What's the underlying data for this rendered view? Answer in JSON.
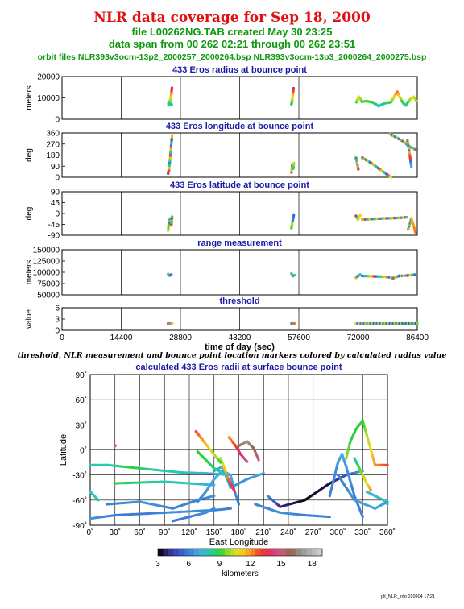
{
  "header": {
    "title": "NLR data coverage for Sep 18, 2000",
    "file_line": "file L00262NG.TAB created May 30 23:25",
    "span_line": "data span from 00 262 02:21 through 00 262 23:51",
    "orbit_line": "orbit files NLR393v3ocm-13p2_2000257_2000264.bsp NLR393v3ocm-13p3_2000264_2000275.bsp"
  },
  "caption": "threshold, NLR measurement and bounce point location markers colored by calculated radius value",
  "footer": "plt_NLR_info 010904 17:21",
  "colors": {
    "title": "#e01010",
    "subtitle": "#109810",
    "panel_title": "#1a1aa8"
  },
  "chart_data": [
    {
      "type": "scatter",
      "title": "433 Eros radius at bounce point",
      "ylabel": "meters",
      "ylim": [
        0,
        20000
      ],
      "yticks": [
        "0",
        "10000",
        "20000"
      ],
      "xlim": [
        0,
        86400
      ],
      "grid": true,
      "segments": [
        {
          "x": [
            25900,
            26000,
            26200,
            26400,
            26600,
            26750
          ],
          "y": [
            7500,
            6800,
            8200,
            9500,
            12000,
            15000
          ]
        },
        {
          "x": [
            25900,
            26300,
            26700
          ],
          "y": [
            6500,
            7200,
            6900
          ]
        },
        {
          "x": [
            55800,
            55950,
            56100,
            56300
          ],
          "y": [
            7000,
            8500,
            11000,
            14500
          ]
        },
        {
          "x": [
            71600,
            72200,
            73000,
            74000,
            75500,
            77000,
            78500,
            80000,
            81500,
            82500,
            83200
          ],
          "y": [
            8000,
            10500,
            8200,
            8500,
            8000,
            6200,
            7500,
            8000,
            12800,
            9000,
            7000
          ]
        },
        {
          "x": [
            83600,
            84500,
            85500,
            86300
          ],
          "y": [
            6500,
            9000,
            10500,
            8500
          ]
        }
      ]
    },
    {
      "type": "scatter",
      "title": "433 Eros longitude at bounce point",
      "ylabel": "deg",
      "ylim": [
        0,
        360
      ],
      "yticks": [
        "0",
        "90",
        "180",
        "270",
        "360"
      ],
      "xlim": [
        0,
        86400
      ],
      "grid": true,
      "segments": [
        {
          "x": [
            25800,
            26000,
            26200,
            26400,
            26600,
            26800
          ],
          "y": [
            30,
            60,
            120,
            200,
            280,
            340
          ]
        },
        {
          "x": [
            55800,
            56000,
            56200,
            56400
          ],
          "y": [
            40,
            100,
            70,
            120
          ]
        },
        {
          "x": [
            71500,
            71800,
            72100
          ],
          "y": [
            160,
            110,
            60
          ]
        },
        {
          "x": [
            73000,
            75000,
            77500,
            80000
          ],
          "y": [
            160,
            120,
            60,
            0
          ]
        },
        {
          "x": [
            79800,
            81500,
            83000,
            84500,
            86200
          ],
          "y": [
            350,
            320,
            290,
            250,
            220
          ]
        },
        {
          "x": [
            84000,
            84500,
            85000
          ],
          "y": [
            300,
            200,
            80
          ]
        }
      ]
    },
    {
      "type": "scatter",
      "title": "433 Eros latitude at bounce point",
      "ylabel": "deg",
      "ylim": [
        -90,
        90
      ],
      "yticks": [
        "-90",
        "-45",
        "0",
        "45",
        "90"
      ],
      "xlim": [
        0,
        86400
      ],
      "grid": true,
      "segments": [
        {
          "x": [
            25800,
            26000,
            26300,
            26600,
            26800
          ],
          "y": [
            -70,
            -40,
            -20,
            -50,
            -10
          ]
        },
        {
          "x": [
            55800,
            56100,
            56400
          ],
          "y": [
            -60,
            -30,
            -5
          ]
        },
        {
          "x": [
            71500,
            72000,
            72600
          ],
          "y": [
            -10,
            -25,
            -5
          ]
        },
        {
          "x": [
            73000,
            76000,
            79000,
            82000,
            84000
          ],
          "y": [
            -25,
            -22,
            -20,
            -18,
            -15
          ]
        },
        {
          "x": [
            84200,
            85000,
            86000
          ],
          "y": [
            -65,
            -20,
            -80
          ]
        }
      ]
    },
    {
      "type": "scatter",
      "title": "range measurement",
      "ylabel": "meters",
      "ylim": [
        50000,
        150000
      ],
      "yticks": [
        "50000",
        "75000",
        "100000",
        "125000",
        "150000"
      ],
      "xlim": [
        0,
        86400
      ],
      "grid": true,
      "segments": [
        {
          "x": [
            25800,
            26200,
            26600
          ],
          "y": [
            96000,
            93000,
            95000
          ]
        },
        {
          "x": [
            55800,
            56200,
            56500
          ],
          "y": [
            97000,
            92000,
            94000
          ]
        },
        {
          "x": [
            71500,
            72000,
            72500
          ],
          "y": [
            88000,
            92000,
            95000
          ]
        },
        {
          "x": [
            73000,
            76000,
            79000,
            80500,
            82000,
            84000,
            86000
          ],
          "y": [
            92000,
            91000,
            90000,
            87000,
            92000,
            93000,
            95000
          ]
        }
      ]
    },
    {
      "type": "scatter",
      "title": "threshold",
      "ylabel": "value",
      "ylim": [
        0,
        6
      ],
      "yticks": [
        "0",
        "3",
        "6"
      ],
      "xlim": [
        0,
        86400
      ],
      "xticks": [
        "0",
        "14400",
        "28800",
        "43200",
        "57600",
        "72000",
        "86400"
      ],
      "xlabel": "time of day (sec)",
      "grid": true,
      "segments": [
        {
          "x": [
            25800,
            26800
          ],
          "y": [
            1.8,
            1.8
          ]
        },
        {
          "x": [
            55800,
            56500
          ],
          "y": [
            1.8,
            1.8
          ]
        },
        {
          "x": [
            71500,
            86400
          ],
          "y": [
            1.8,
            1.8
          ]
        }
      ]
    },
    {
      "type": "scatter",
      "title": "calculated 433 Eros radii at surface bounce point",
      "xlabel": "East Longitude",
      "ylabel": "Latitude",
      "xlim": [
        0,
        360
      ],
      "ylim": [
        -90,
        90
      ],
      "xticks": [
        "0˚",
        "30˚",
        "60˚",
        "90˚",
        "120˚",
        "150˚",
        "180˚",
        "210˚",
        "240˚",
        "270˚",
        "300˚",
        "330˚",
        "360˚"
      ],
      "yticks": [
        "-90˚",
        "-60˚",
        "-30˚",
        "0˚",
        "30˚",
        "60˚",
        "90˚"
      ],
      "grid": true,
      "colorbar": {
        "label": "kilometers",
        "ticks": [
          "3",
          "6",
          "9",
          "12",
          "15",
          "18"
        ],
        "range": [
          3,
          19
        ]
      },
      "tracks": [
        {
          "lon": [
            0,
            20,
            50,
            80,
            110,
            140,
            170
          ],
          "lat": [
            -18,
            -18,
            -21,
            -24,
            -27,
            -28,
            -30
          ],
          "km": [
            8,
            8,
            9,
            8,
            8,
            7,
            7
          ]
        },
        {
          "lon": [
            30,
            60,
            90,
            120,
            150
          ],
          "lat": [
            -40,
            -39,
            -38,
            -40,
            -42
          ],
          "km": [
            9,
            8.5,
            8,
            8,
            7
          ]
        },
        {
          "lon": [
            0,
            30,
            70,
            110,
            150,
            170
          ],
          "lat": [
            -82,
            -78,
            -76,
            -74,
            -72,
            -70
          ],
          "km": [
            6.5,
            6,
            6,
            6.5,
            6.2,
            6
          ]
        },
        {
          "lon": [
            20,
            60,
            100,
            130,
            150
          ],
          "lat": [
            -65,
            -62,
            -70,
            -60,
            -55
          ],
          "km": [
            6,
            6.5,
            6.2,
            6,
            6.5
          ]
        },
        {
          "lon": [
            130,
            140,
            150,
            160,
            170,
            175,
            180
          ],
          "lat": [
            -62,
            -50,
            -35,
            -25,
            -30,
            -50,
            -65
          ],
          "km": [
            6,
            6.5,
            7,
            7.5,
            7,
            6.5,
            6
          ]
        },
        {
          "lon": [
            150,
            160,
            170,
            190,
            210
          ],
          "lat": [
            -25,
            -20,
            -45,
            -35,
            -28
          ],
          "km": [
            6.5,
            7,
            6.5,
            6.5,
            7
          ]
        },
        {
          "lon": [
            100,
            120,
            140,
            150
          ],
          "lat": [
            -85,
            -80,
            -75,
            -70
          ],
          "km": [
            6,
            6,
            6.5,
            6.2
          ]
        },
        {
          "lon": [
            158,
            162,
            165,
            170,
            175
          ],
          "lat": [
            -10,
            -20,
            -30,
            -40,
            -50
          ],
          "km": [
            10,
            11,
            12,
            13,
            14
          ]
        },
        {
          "lon": [
            168,
            176,
            182,
            190
          ],
          "lat": [
            15,
            5,
            -5,
            -14
          ],
          "km": [
            12,
            13,
            14,
            15
          ]
        },
        {
          "lon": [
            180,
            190,
            198,
            204
          ],
          "lat": [
            5,
            10,
            2,
            -12
          ],
          "km": [
            16,
            17,
            16,
            15
          ]
        },
        {
          "lon": [
            128,
            136,
            144,
            152,
            158
          ],
          "lat": [
            22,
            12,
            2,
            -8,
            -15
          ],
          "km": [
            13,
            12,
            11,
            10,
            9
          ]
        },
        {
          "lon": [
            130,
            140,
            150,
            165
          ],
          "lat": [
            -2,
            -12,
            -22,
            -30
          ],
          "km": [
            9,
            9,
            8.5,
            8
          ]
        },
        {
          "lon": [
            215,
            230,
            260,
            290,
            310,
            330
          ],
          "lat": [
            -55,
            -68,
            -60,
            -40,
            -30,
            -25
          ],
          "km": [
            6.5,
            4,
            3.2,
            3.5,
            5,
            7
          ]
        },
        {
          "lon": [
            200,
            230,
            260,
            290
          ],
          "lat": [
            -65,
            -75,
            -78,
            -80
          ],
          "km": [
            6,
            6.5,
            6,
            6.2
          ]
        },
        {
          "lon": [
            290,
            300,
            305,
            310,
            320,
            330
          ],
          "lat": [
            -55,
            -15,
            -5,
            -20,
            -55,
            -80
          ],
          "km": [
            6,
            6.5,
            7,
            6.5,
            6,
            6.2
          ]
        },
        {
          "lon": [
            310,
            315,
            322,
            330,
            345,
            360
          ],
          "lat": [
            -10,
            10,
            25,
            35,
            -18,
            -18
          ],
          "km": [
            10,
            9,
            9,
            9,
            12,
            13
          ]
        },
        {
          "lon": [
            320,
            325,
            330,
            335,
            340
          ],
          "lat": [
            -10,
            -20,
            -30,
            -40,
            -48
          ],
          "km": [
            8,
            9,
            10,
            11,
            12
          ]
        },
        {
          "lon": [
            335,
            345,
            355,
            360
          ],
          "lat": [
            -50,
            -55,
            -60,
            -65
          ],
          "km": [
            8,
            7,
            8,
            8
          ]
        },
        {
          "lon": [
            300,
            320,
            345,
            360
          ],
          "lat": [
            -30,
            -60,
            -70,
            -62
          ],
          "km": [
            6,
            6.5,
            7,
            6.5
          ]
        },
        {
          "lon": [
            0,
            5,
            10
          ],
          "lat": [
            -50,
            -55,
            -60
          ],
          "km": [
            8,
            8,
            8
          ]
        },
        {
          "lon": [
            30
          ],
          "lat": [
            5
          ],
          "km": [
            15
          ]
        }
      ]
    }
  ]
}
